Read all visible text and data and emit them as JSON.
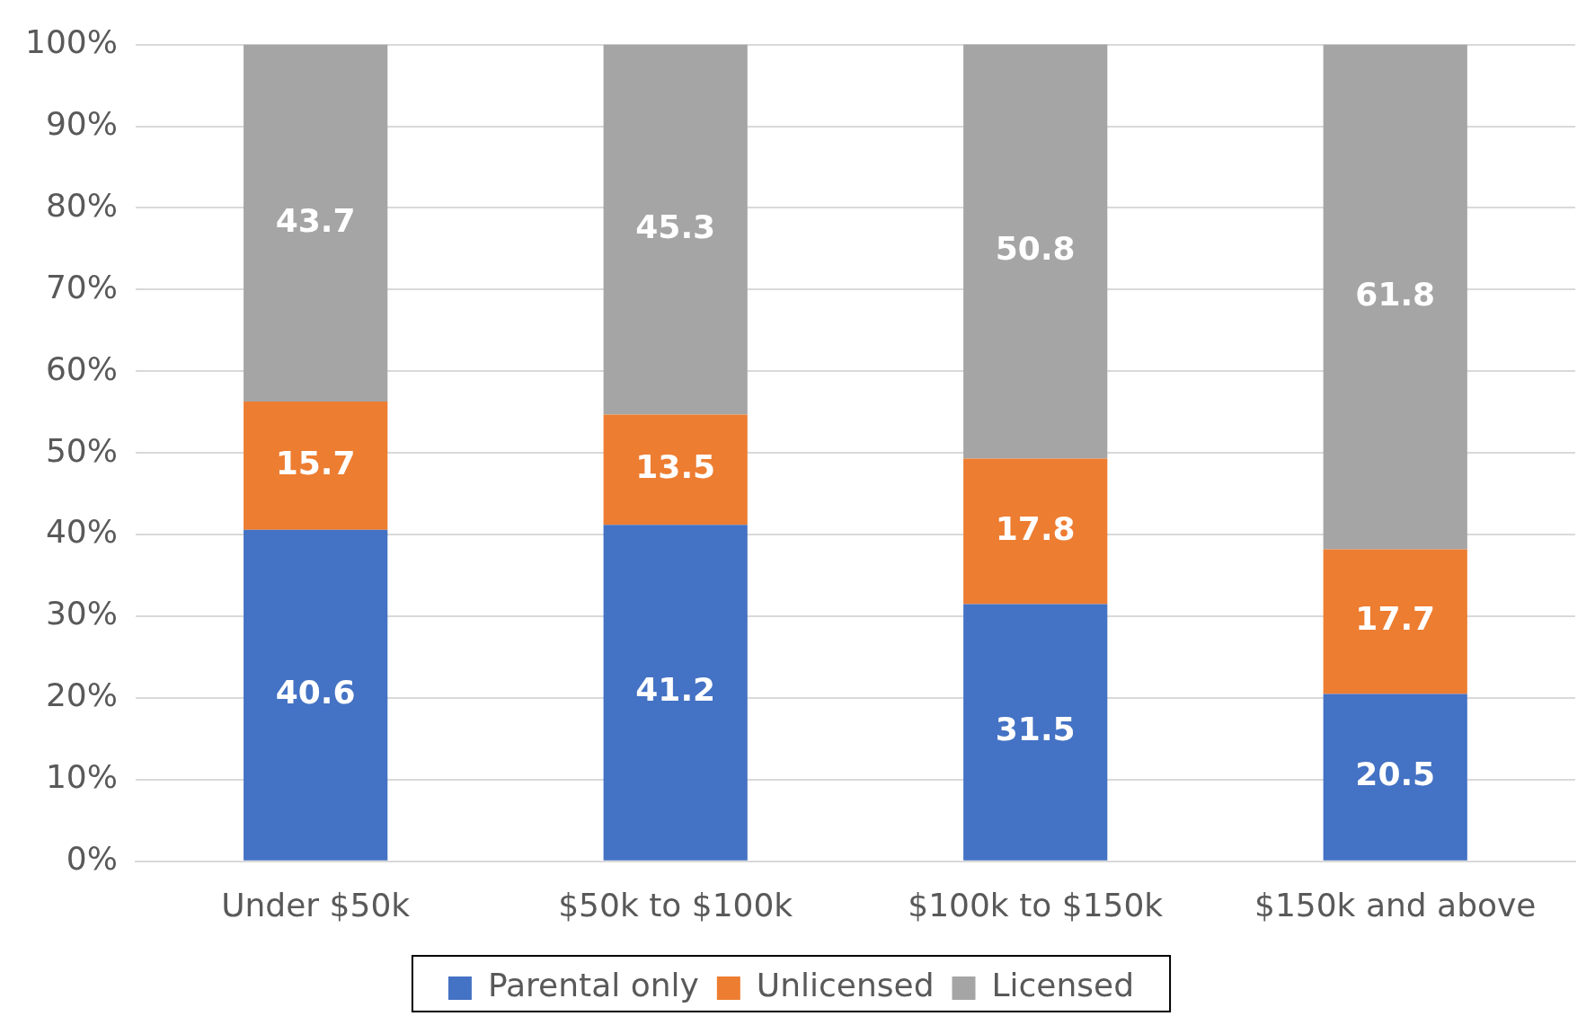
{
  "chart_data": {
    "type": "bar",
    "stacked": true,
    "categories": [
      "Under $50k",
      "$50k to $100k",
      "$100k to $150k",
      "$150k and above"
    ],
    "series": [
      {
        "name": "Parental only",
        "color": "#4472c4",
        "values": [
          40.6,
          41.2,
          31.5,
          20.5
        ]
      },
      {
        "name": "Unlicensed",
        "color": "#ed7d31",
        "values": [
          15.7,
          13.5,
          17.8,
          17.7
        ]
      },
      {
        "name": "Licensed",
        "color": "#a5a5a5",
        "values": [
          43.7,
          45.3,
          50.8,
          61.8
        ]
      }
    ],
    "ylim": [
      0,
      100
    ],
    "yticks": [
      {
        "value": 0,
        "label": "0%"
      },
      {
        "value": 10,
        "label": "10%"
      },
      {
        "value": 20,
        "label": "20%"
      },
      {
        "value": 30,
        "label": "30%"
      },
      {
        "value": 40,
        "label": "40%"
      },
      {
        "value": 50,
        "label": "50%"
      },
      {
        "value": 60,
        "label": "60%"
      },
      {
        "value": 70,
        "label": "70%"
      },
      {
        "value": 80,
        "label": "80%"
      },
      {
        "value": 90,
        "label": "90%"
      },
      {
        "value": 100,
        "label": "100%"
      }
    ],
    "grid": "y",
    "legend": "bottom",
    "data_labels": true
  }
}
